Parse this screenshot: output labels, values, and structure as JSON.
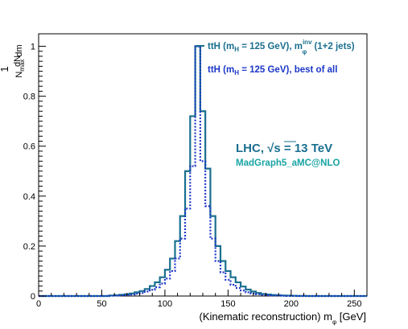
{
  "chart_data": {
    "type": "line",
    "step": true,
    "xlabel_text": "(Kinematic reconstruction) m",
    "xlabel_sub": "φ",
    "xlabel_unit": " [GeV]",
    "ylabel_top": "1",
    "ylabel_num": "dN",
    "ylabel_den": "N",
    "ylabel_den_sub": "max",
    "ylabel_dm": "dm",
    "xlim": [
      0,
      260
    ],
    "ylim": [
      0,
      1.05
    ],
    "bin_width": 4,
    "x_start": 0,
    "x_ticks": [
      0,
      50,
      100,
      150,
      200,
      250
    ],
    "y_ticks": [
      0,
      0.2,
      0.4,
      0.6,
      0.8,
      1
    ],
    "y_tick_labels": [
      "0",
      "0.2",
      "0.4",
      "0.6",
      "0.8",
      "1"
    ],
    "series": [
      {
        "label_main": "ttH (m",
        "label_sub": "H",
        "label_mid": " = 125 GeV), m",
        "label_sup": "inv",
        "label_sub2": "φ",
        "label_end": " (1+2 jets)",
        "color": "#1a6f8f",
        "dash": false,
        "values": [
          0,
          0,
          0,
          0,
          0,
          0,
          0,
          0,
          0,
          0,
          0,
          0,
          0,
          0,
          0.002,
          0.003,
          0.005,
          0.007,
          0.01,
          0.015,
          0.02,
          0.028,
          0.04,
          0.055,
          0.075,
          0.105,
          0.15,
          0.22,
          0.32,
          0.5,
          0.72,
          1.0,
          0.74,
          0.51,
          0.32,
          0.2,
          0.14,
          0.1,
          0.075,
          0.055,
          0.038,
          0.026,
          0.018,
          0.012,
          0.008,
          0.006,
          0.004,
          0.003,
          0.002,
          0.0015,
          0.001,
          0.0005,
          0.0003,
          0,
          0,
          0,
          0,
          0,
          0,
          0,
          0,
          0,
          0,
          0,
          0
        ]
      },
      {
        "label_main": "ttH (m",
        "label_sub": "H",
        "label_end": " = 125 GeV), best of all",
        "color": "#1c37c7",
        "dash": true,
        "values": [
          0,
          0,
          0,
          0,
          0,
          0,
          0,
          0,
          0,
          0,
          0,
          0,
          0,
          0,
          0.001,
          0.002,
          0.003,
          0.004,
          0.006,
          0.009,
          0.012,
          0.018,
          0.025,
          0.035,
          0.05,
          0.07,
          0.1,
          0.15,
          0.23,
          0.35,
          0.52,
          1.0,
          0.54,
          0.36,
          0.23,
          0.14,
          0.095,
          0.065,
          0.045,
          0.032,
          0.022,
          0.015,
          0.01,
          0.007,
          0.005,
          0.003,
          0.002,
          0.0015,
          0.001,
          0.0005,
          0.0003,
          0,
          0,
          0,
          0,
          0,
          0,
          0,
          0,
          0,
          0,
          0,
          0,
          0,
          0
        ]
      }
    ],
    "annotation_main_a": "LHC,  ",
    "annotation_main_b": "s = 13 TeV",
    "annotation_sub": "MadGraph5_aMC@NLO"
  }
}
